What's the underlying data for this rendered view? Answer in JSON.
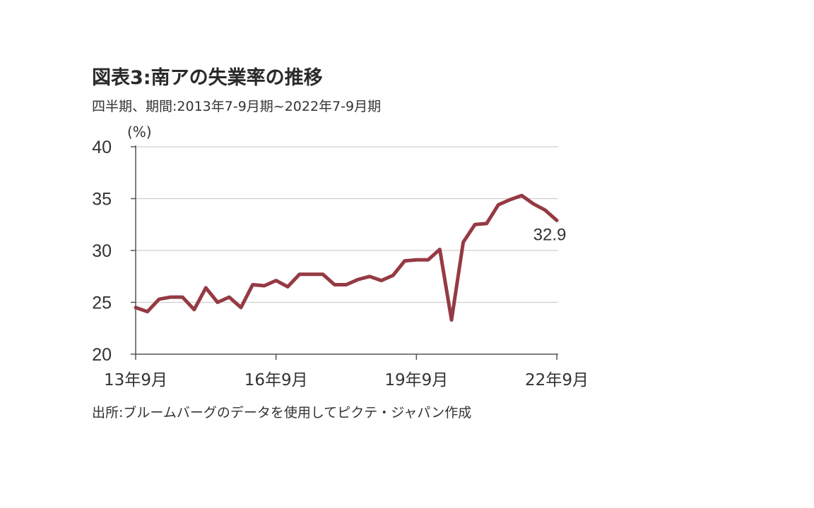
{
  "header": {
    "title": "図表3:南アの失業率の推移",
    "subtitle": "四半期、期間:2013年7-9月期~2022年7-9月期"
  },
  "footer": {
    "source": "出所:ブルームバーグのデータを使用してピクテ・ジャパン作成"
  },
  "chart_data": {
    "type": "line",
    "ylabel": "(%)",
    "ylim": [
      20,
      40
    ],
    "yticks": [
      20,
      25,
      30,
      35,
      40
    ],
    "grid": true,
    "legend": "none",
    "line_color": "#953a43",
    "x_tick_labels": [
      {
        "index": 0,
        "label": "13年9月"
      },
      {
        "index": 12,
        "label": "16年9月"
      },
      {
        "index": 24,
        "label": "19年9月"
      },
      {
        "index": 36,
        "label": "22年9月"
      }
    ],
    "x": [
      "2013Q3",
      "2013Q4",
      "2014Q1",
      "2014Q2",
      "2014Q3",
      "2014Q4",
      "2015Q1",
      "2015Q2",
      "2015Q3",
      "2015Q4",
      "2016Q1",
      "2016Q2",
      "2016Q3",
      "2016Q4",
      "2017Q1",
      "2017Q2",
      "2017Q3",
      "2017Q4",
      "2018Q1",
      "2018Q2",
      "2018Q3",
      "2018Q4",
      "2019Q1",
      "2019Q2",
      "2019Q3",
      "2019Q4",
      "2020Q1",
      "2020Q2",
      "2020Q3",
      "2020Q4",
      "2021Q1",
      "2021Q2",
      "2021Q3",
      "2021Q4",
      "2022Q1",
      "2022Q2",
      "2022Q3"
    ],
    "values": [
      24.5,
      24.1,
      25.3,
      25.5,
      25.5,
      24.3,
      26.4,
      25.0,
      25.5,
      24.5,
      26.7,
      26.6,
      27.1,
      26.5,
      27.7,
      27.7,
      27.7,
      26.7,
      26.7,
      27.2,
      27.5,
      27.1,
      27.6,
      29.0,
      29.1,
      29.1,
      30.1,
      23.3,
      30.8,
      32.5,
      32.6,
      34.4,
      34.9,
      35.3,
      34.5,
      33.9,
      32.9
    ],
    "annotations": [
      {
        "index": 36,
        "label": "32.9"
      }
    ]
  }
}
